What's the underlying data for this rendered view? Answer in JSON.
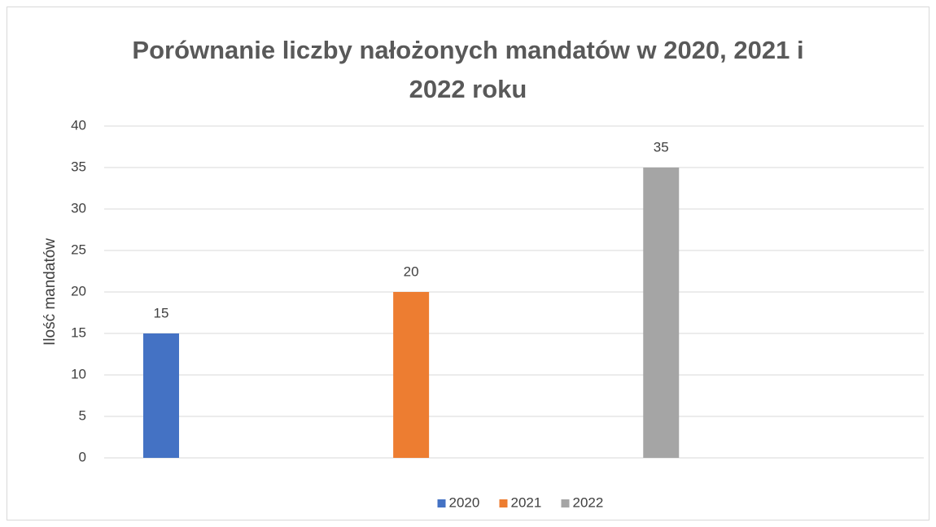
{
  "chart_data": {
    "type": "bar",
    "title": "Porównanie liczby nałożonych mandatów w 2020, 2021 i 2022 roku",
    "y_label": "Ilość mandatów",
    "categories": [
      null
    ],
    "series": [
      {
        "name": "2020",
        "color": "#4472c4",
        "values": [
          15
        ]
      },
      {
        "name": "2021",
        "color": "#ed7d31",
        "values": [
          20
        ]
      },
      {
        "name": "2022",
        "color": "#a5a5a5",
        "values": [
          35
        ]
      }
    ],
    "ylim": [
      0,
      40
    ],
    "yticks": [
      0,
      5,
      10,
      15,
      20,
      25,
      30,
      35,
      40
    ],
    "grid": true,
    "legend": "bottom",
    "data_labels": true
  }
}
